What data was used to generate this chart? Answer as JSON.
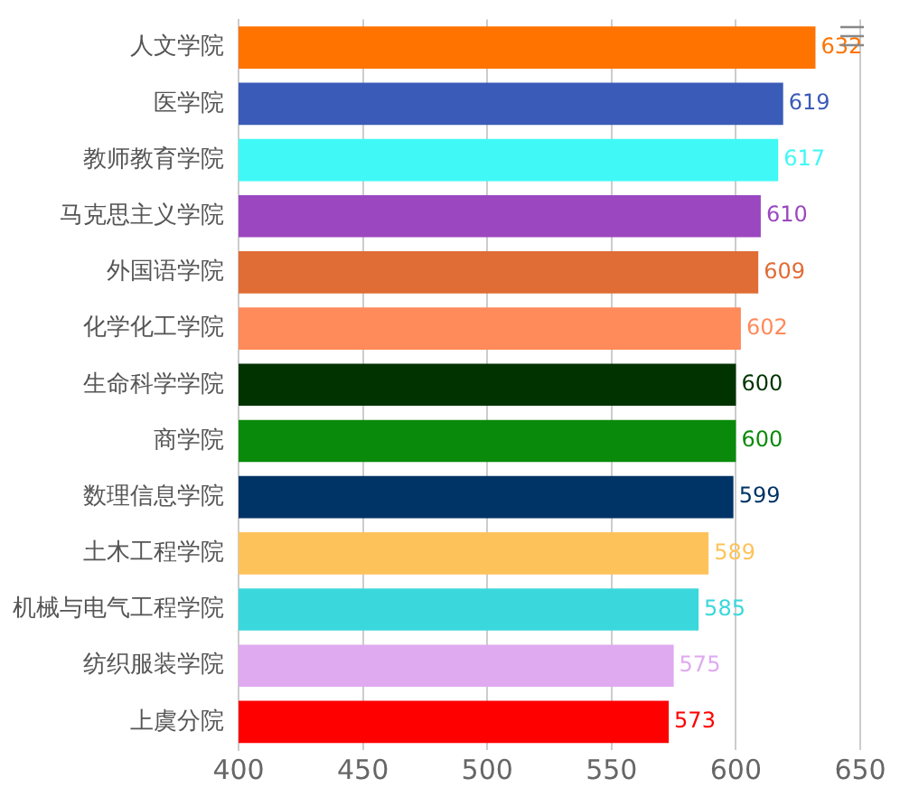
{
  "chart_data": {
    "type": "bar",
    "orientation": "horizontal",
    "categories": [
      "人文学院",
      "医学院",
      "教师教育学院",
      "马克思主义学院",
      "外国语学院",
      "化学化工学院",
      "生命科学学院",
      "商学院",
      "数理信息学院",
      "土木工程学院",
      "机械与电气工程学院",
      "纺织服装学院",
      "上虞分院"
    ],
    "values": [
      632,
      619,
      617,
      610,
      609,
      602,
      600,
      600,
      599,
      589,
      585,
      575,
      573
    ],
    "colors": [
      "#ff7300",
      "#3a5bb8",
      "#40f8f5",
      "#9b47c0",
      "#e06c36",
      "#ff8a5a",
      "#003300",
      "#0a8a0a",
      "#003366",
      "#fdc35a",
      "#3ad8dc",
      "#dfaaf0",
      "#ff0000"
    ],
    "xlim": [
      400,
      650
    ],
    "xticks": [
      400,
      450,
      500,
      550,
      600,
      650
    ],
    "grid": "x",
    "legend": false,
    "data_labels": true
  }
}
